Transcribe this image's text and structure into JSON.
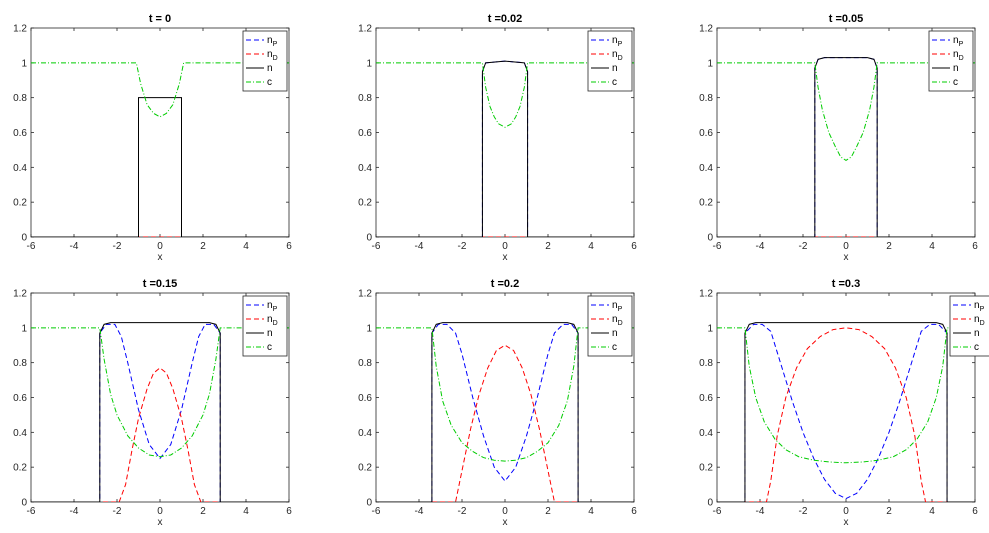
{
  "colors": {
    "n_P": "#0000ff",
    "n_D": "#ff0000",
    "n": "#000000",
    "c": "#00cc00",
    "axis": "#262626"
  },
  "chart_data": [
    {
      "type": "line",
      "title": "t = 0",
      "xlabel": "x",
      "ylabel": "",
      "xlim": [
        -6,
        6
      ],
      "ylim": [
        0,
        1.2
      ],
      "xticks": [
        "-6",
        "-4",
        "-2",
        "0",
        "2",
        "4",
        "6"
      ],
      "yticks": [
        "0",
        "0.2",
        "0.4",
        "0.6",
        "0.8",
        "1",
        "1.2"
      ],
      "legend": {
        "position": "top-right",
        "entries": [
          {
            "key": "n_P",
            "base": "n",
            "sub": "P"
          },
          {
            "key": "n_D",
            "base": "n",
            "sub": "D"
          },
          {
            "key": "n",
            "base": "n",
            "sub": ""
          },
          {
            "key": "c",
            "base": "c",
            "sub": ""
          }
        ]
      },
      "series": [
        {
          "key": "n_P",
          "x": [
            -6,
            6
          ],
          "y": [
            0,
            0
          ]
        },
        {
          "key": "n_D",
          "x": [
            -6,
            6
          ],
          "y": [
            0,
            0
          ]
        },
        {
          "key": "n",
          "x": [
            -6,
            -1,
            -1,
            1,
            1,
            6
          ],
          "y": [
            0,
            0,
            0.8,
            0.8,
            0,
            0
          ]
        },
        {
          "key": "c",
          "x": [
            -6,
            -1.1,
            -0.9,
            -0.6,
            -0.3,
            0,
            0.3,
            0.6,
            0.9,
            1.1,
            6
          ],
          "y": [
            1,
            1,
            0.88,
            0.76,
            0.71,
            0.69,
            0.71,
            0.76,
            0.88,
            1,
            1
          ]
        }
      ]
    },
    {
      "type": "line",
      "title": "t =0.02",
      "xlabel": "x",
      "ylabel": "",
      "xlim": [
        -6,
        6
      ],
      "ylim": [
        0,
        1.2
      ],
      "xticks": [
        "-6",
        "-4",
        "-2",
        "0",
        "2",
        "4",
        "6"
      ],
      "yticks": [
        "0",
        "0.2",
        "0.4",
        "0.6",
        "0.8",
        "1",
        "1.2"
      ],
      "legend": {
        "position": "top-right",
        "entries": [
          {
            "key": "n_P",
            "base": "n",
            "sub": "P"
          },
          {
            "key": "n_D",
            "base": "n",
            "sub": "D"
          },
          {
            "key": "n",
            "base": "n",
            "sub": ""
          },
          {
            "key": "c",
            "base": "c",
            "sub": ""
          }
        ]
      },
      "series": [
        {
          "key": "n_P",
          "x": [
            -6,
            -1.05,
            -1.05,
            -0.9,
            0,
            0.9,
            1.05,
            1.05,
            6
          ],
          "y": [
            0,
            0,
            0.95,
            1.0,
            1.01,
            1.0,
            0.95,
            0,
            0
          ]
        },
        {
          "key": "n_D",
          "x": [
            -6,
            6
          ],
          "y": [
            0,
            0
          ]
        },
        {
          "key": "n",
          "x": [
            -6,
            -1.05,
            -1.05,
            -0.9,
            0,
            0.9,
            1.05,
            1.05,
            6
          ],
          "y": [
            0,
            0,
            0.95,
            1.0,
            1.01,
            1.0,
            0.95,
            0,
            0
          ]
        },
        {
          "key": "c",
          "x": [
            -6,
            -1.05,
            -0.9,
            -0.7,
            -0.5,
            -0.3,
            0,
            0.3,
            0.5,
            0.7,
            0.9,
            1.05,
            6
          ],
          "y": [
            1,
            1,
            0.86,
            0.75,
            0.69,
            0.65,
            0.63,
            0.65,
            0.69,
            0.75,
            0.86,
            1,
            1
          ]
        }
      ]
    },
    {
      "type": "line",
      "title": "t =0.05",
      "xlabel": "x",
      "ylabel": "",
      "xlim": [
        -6,
        6
      ],
      "ylim": [
        0,
        1.2
      ],
      "xticks": [
        "-6",
        "-4",
        "-2",
        "0",
        "2",
        "4",
        "6"
      ],
      "yticks": [
        "0",
        "0.2",
        "0.4",
        "0.6",
        "0.8",
        "1",
        "1.2"
      ],
      "legend": {
        "position": "top-right",
        "entries": [
          {
            "key": "n_P",
            "base": "n",
            "sub": "P"
          },
          {
            "key": "n_D",
            "base": "n",
            "sub": "D"
          },
          {
            "key": "n",
            "base": "n",
            "sub": ""
          },
          {
            "key": "c",
            "base": "c",
            "sub": ""
          }
        ]
      },
      "series": [
        {
          "key": "n_P",
          "x": [
            -6,
            -1.45,
            -1.45,
            -1.3,
            -1.0,
            0,
            1.0,
            1.3,
            1.45,
            1.45,
            6
          ],
          "y": [
            0,
            0,
            0.97,
            1.02,
            1.03,
            1.03,
            1.03,
            1.02,
            0.97,
            0,
            0
          ]
        },
        {
          "key": "n_D",
          "x": [
            -6,
            6
          ],
          "y": [
            0,
            0
          ]
        },
        {
          "key": "n",
          "x": [
            -6,
            -1.45,
            -1.45,
            -1.3,
            -1.0,
            0,
            1.0,
            1.3,
            1.45,
            1.45,
            6
          ],
          "y": [
            0,
            0,
            0.97,
            1.02,
            1.03,
            1.03,
            1.03,
            1.02,
            0.97,
            0,
            0
          ]
        },
        {
          "key": "c",
          "x": [
            -6,
            -1.45,
            -1.3,
            -1.1,
            -0.8,
            -0.5,
            -0.25,
            0,
            0.25,
            0.5,
            0.8,
            1.1,
            1.3,
            1.45,
            6
          ],
          "y": [
            1,
            1,
            0.86,
            0.73,
            0.6,
            0.52,
            0.46,
            0.44,
            0.46,
            0.52,
            0.6,
            0.73,
            0.86,
            1,
            1
          ]
        }
      ]
    },
    {
      "type": "line",
      "title": "t =0.15",
      "xlabel": "x",
      "ylabel": "",
      "xlim": [
        -6,
        6
      ],
      "ylim": [
        0,
        1.2
      ],
      "xticks": [
        "-6",
        "-4",
        "-2",
        "0",
        "2",
        "4",
        "6"
      ],
      "yticks": [
        "0",
        "0.2",
        "0.4",
        "0.6",
        "0.8",
        "1",
        "1.2"
      ],
      "legend": {
        "position": "top-right",
        "entries": [
          {
            "key": "n_P",
            "base": "n",
            "sub": "P"
          },
          {
            "key": "n_D",
            "base": "n",
            "sub": "D"
          },
          {
            "key": "n",
            "base": "n",
            "sub": ""
          },
          {
            "key": "c",
            "base": "c",
            "sub": ""
          }
        ]
      },
      "series": [
        {
          "key": "n_P",
          "x": [
            -6,
            -2.8,
            -2.8,
            -2.5,
            -2.1,
            -1.8,
            -1.5,
            -1.0,
            -0.5,
            0,
            0.5,
            1.0,
            1.5,
            1.8,
            2.1,
            2.5,
            2.8,
            2.8,
            6
          ],
          "y": [
            0,
            0,
            0.97,
            1.02,
            1.02,
            0.95,
            0.8,
            0.53,
            0.33,
            0.25,
            0.33,
            0.53,
            0.8,
            0.95,
            1.02,
            1.02,
            0.97,
            0,
            0
          ]
        },
        {
          "key": "n_D",
          "x": [
            -6,
            -1.9,
            -1.6,
            -1.3,
            -1.0,
            -0.6,
            -0.3,
            0,
            0.3,
            0.6,
            1.0,
            1.3,
            1.6,
            1.9,
            6
          ],
          "y": [
            0,
            0,
            0.1,
            0.3,
            0.48,
            0.65,
            0.74,
            0.77,
            0.74,
            0.65,
            0.48,
            0.3,
            0.1,
            0,
            0
          ]
        },
        {
          "key": "n",
          "x": [
            -6,
            -2.8,
            -2.8,
            -2.6,
            -2.3,
            0,
            2.3,
            2.6,
            2.8,
            2.8,
            6
          ],
          "y": [
            0,
            0,
            0.97,
            1.02,
            1.03,
            1.03,
            1.03,
            1.02,
            0.97,
            0,
            0
          ]
        },
        {
          "key": "c",
          "x": [
            -6,
            -2.8,
            -2.6,
            -2.3,
            -2.0,
            -1.5,
            -1.0,
            -0.5,
            0,
            0.5,
            1.0,
            1.5,
            2.0,
            2.3,
            2.6,
            2.8,
            6
          ],
          "y": [
            1,
            1,
            0.82,
            0.62,
            0.5,
            0.38,
            0.31,
            0.27,
            0.26,
            0.27,
            0.31,
            0.38,
            0.5,
            0.62,
            0.82,
            1,
            1
          ]
        }
      ]
    },
    {
      "type": "line",
      "title": "t =0.2",
      "xlabel": "x",
      "ylabel": "",
      "xlim": [
        -6,
        6
      ],
      "ylim": [
        0,
        1.2
      ],
      "xticks": [
        "-6",
        "-4",
        "-2",
        "0",
        "2",
        "4",
        "6"
      ],
      "yticks": [
        "0",
        "0.2",
        "0.4",
        "0.6",
        "0.8",
        "1",
        "1.2"
      ],
      "legend": {
        "position": "top-right",
        "entries": [
          {
            "key": "n_P",
            "base": "n",
            "sub": "P"
          },
          {
            "key": "n_D",
            "base": "n",
            "sub": "D"
          },
          {
            "key": "n",
            "base": "n",
            "sub": ""
          },
          {
            "key": "c",
            "base": "c",
            "sub": ""
          }
        ]
      },
      "series": [
        {
          "key": "n_P",
          "x": [
            -6,
            -3.4,
            -3.4,
            -3.1,
            -2.7,
            -2.3,
            -2.0,
            -1.5,
            -1.0,
            -0.5,
            0,
            0.5,
            1.0,
            1.5,
            2.0,
            2.3,
            2.7,
            3.1,
            3.4,
            3.4,
            6
          ],
          "y": [
            0,
            0,
            0.97,
            1.02,
            1.02,
            0.97,
            0.85,
            0.6,
            0.38,
            0.2,
            0.12,
            0.2,
            0.38,
            0.6,
            0.85,
            0.97,
            1.02,
            1.02,
            0.97,
            0,
            0
          ]
        },
        {
          "key": "n_D",
          "x": [
            -6,
            -2.3,
            -2.0,
            -1.6,
            -1.2,
            -0.8,
            -0.4,
            0,
            0.4,
            0.8,
            1.2,
            1.6,
            2.0,
            2.3,
            6
          ],
          "y": [
            0,
            0,
            0.18,
            0.42,
            0.62,
            0.77,
            0.87,
            0.9,
            0.87,
            0.77,
            0.62,
            0.42,
            0.18,
            0,
            0
          ]
        },
        {
          "key": "n",
          "x": [
            -6,
            -3.4,
            -3.4,
            -3.2,
            -2.9,
            0,
            2.9,
            3.2,
            3.4,
            3.4,
            6
          ],
          "y": [
            0,
            0,
            0.97,
            1.02,
            1.03,
            1.03,
            1.03,
            1.02,
            0.97,
            0,
            0
          ]
        },
        {
          "key": "c",
          "x": [
            -6,
            -3.4,
            -3.2,
            -2.9,
            -2.5,
            -2.0,
            -1.5,
            -1.0,
            -0.5,
            0,
            0.5,
            1.0,
            1.5,
            2.0,
            2.5,
            2.9,
            3.2,
            3.4,
            6
          ],
          "y": [
            1,
            1,
            0.78,
            0.58,
            0.44,
            0.34,
            0.29,
            0.255,
            0.24,
            0.235,
            0.24,
            0.255,
            0.29,
            0.34,
            0.44,
            0.58,
            0.78,
            1,
            1
          ]
        }
      ]
    },
    {
      "type": "line",
      "title": "t =0.3",
      "xlabel": "x",
      "ylabel": "",
      "xlim": [
        -6,
        6
      ],
      "ylim": [
        0,
        1.2
      ],
      "xticks": [
        "-6",
        "-4",
        "-2",
        "0",
        "2",
        "4",
        "6"
      ],
      "yticks": [
        "0",
        "0.2",
        "0.4",
        "0.6",
        "0.8",
        "1",
        "1.2"
      ],
      "legend": {
        "position": "top-right",
        "entries": [
          {
            "key": "n_P",
            "base": "n",
            "sub": "P"
          },
          {
            "key": "n_D",
            "base": "n",
            "sub": "D"
          },
          {
            "key": "n",
            "base": "n",
            "sub": ""
          },
          {
            "key": "c",
            "base": "c",
            "sub": ""
          }
        ]
      },
      "series": [
        {
          "key": "n_P",
          "x": [
            -6,
            -4.7,
            -4.7,
            -4.3,
            -3.9,
            -3.5,
            -3.0,
            -2.5,
            -2.0,
            -1.5,
            -1.0,
            -0.5,
            0,
            0.5,
            1.0,
            1.5,
            2.0,
            2.5,
            3.0,
            3.5,
            3.9,
            4.3,
            4.7,
            4.7,
            6
          ],
          "y": [
            0,
            0,
            0.97,
            1.02,
            1.02,
            0.98,
            0.78,
            0.58,
            0.4,
            0.25,
            0.13,
            0.05,
            0.02,
            0.05,
            0.13,
            0.25,
            0.4,
            0.58,
            0.78,
            0.98,
            1.02,
            1.02,
            0.97,
            0,
            0
          ]
        },
        {
          "key": "n_D",
          "x": [
            -6,
            -3.7,
            -3.5,
            -3.2,
            -2.8,
            -2.3,
            -1.8,
            -1.2,
            -0.6,
            0,
            0.6,
            1.2,
            1.8,
            2.3,
            2.8,
            3.2,
            3.5,
            3.7,
            6
          ],
          "y": [
            0,
            0,
            0.12,
            0.38,
            0.6,
            0.77,
            0.88,
            0.95,
            0.99,
            1.0,
            0.99,
            0.95,
            0.88,
            0.77,
            0.6,
            0.38,
            0.12,
            0,
            0
          ]
        },
        {
          "key": "n",
          "x": [
            -6,
            -4.7,
            -4.7,
            -4.5,
            -4.2,
            0,
            4.2,
            4.5,
            4.7,
            4.7,
            6
          ],
          "y": [
            0,
            0,
            0.97,
            1.02,
            1.03,
            1.03,
            1.03,
            1.02,
            0.97,
            0,
            0
          ]
        },
        {
          "key": "c",
          "x": [
            -6,
            -4.7,
            -4.5,
            -4.2,
            -3.8,
            -3.3,
            -2.8,
            -2.2,
            -1.5,
            -0.8,
            0,
            0.8,
            1.5,
            2.2,
            2.8,
            3.3,
            3.8,
            4.2,
            4.5,
            4.7,
            6
          ],
          "y": [
            1,
            1,
            0.78,
            0.6,
            0.46,
            0.36,
            0.3,
            0.26,
            0.24,
            0.23,
            0.225,
            0.23,
            0.24,
            0.26,
            0.3,
            0.36,
            0.46,
            0.6,
            0.78,
            1,
            1
          ]
        }
      ]
    }
  ]
}
